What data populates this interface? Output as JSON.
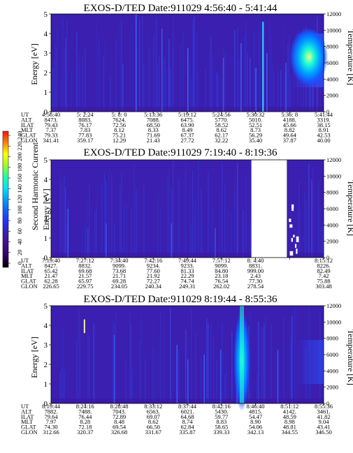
{
  "colors": {
    "background": "#ffffff",
    "plasma_bg": "#3a1fb0",
    "no_data": "#ffffff"
  },
  "colorbar": {
    "label": "Second Harmonic Current",
    "ticks": [
      "240",
      "220",
      "200",
      "180",
      "160",
      "140",
      "120",
      "100",
      "80",
      "60",
      "40",
      "20",
      "0"
    ],
    "range": [
      0,
      240
    ],
    "colors_top_to_bottom": [
      "#ff1010",
      "#ff8000",
      "#ffff00",
      "#a0ff20",
      "#20ffa0",
      "#00e0ff",
      "#00a0ff",
      "#1060ff",
      "#2030ff",
      "#3a1fb0",
      "#40108a",
      "#300060",
      "#000000"
    ]
  },
  "chart_data": [
    {
      "type": "heatmap",
      "title": "EXOS-D/TED   Date:911029  4:56:40 - 5:41:44",
      "ylabel": "Energy [eV]",
      "ylabel_right": "Temperature [K]",
      "ylim": [
        0,
        5
      ],
      "y_ticks": [
        "0",
        "1",
        "2",
        "3",
        "4",
        "5"
      ],
      "ylim_right": [
        0,
        12000
      ],
      "y_ticks_right": [
        "0",
        "2000",
        "4000",
        "6000",
        "8000",
        "10000",
        "12000"
      ],
      "grid": false,
      "row_labels": [
        "UT",
        "ALT",
        "ILAT",
        "MLT",
        "GLAT",
        "GLON"
      ],
      "columns": [
        [
          "4:56:40",
          "8473.",
          "79.43",
          "7.37",
          "79.33",
          "341.41"
        ],
        [
          "5: 2:24",
          "8083.",
          "76.17",
          "7.83",
          "77.83",
          "359.17"
        ],
        [
          "5: 8: 0",
          "7624.",
          "72.56",
          "8.12",
          "75.21",
          "12.29"
        ],
        [
          "5:13:36",
          "7088.",
          "68.50",
          "8.33",
          "71.69",
          "21.43"
        ],
        [
          "5:19:12",
          "6475.",
          "63.90",
          "8.49",
          "67.37",
          "27.72"
        ],
        [
          "5:24:56",
          "5770.",
          "58.52",
          "8.62",
          "62.17",
          "32.22"
        ],
        [
          "5:30:32",
          "5010.",
          "52.51",
          "8.73",
          "56.29",
          "35.40"
        ],
        [
          "5:36: 8",
          "4188.",
          "45.66",
          "8.82",
          "49.64",
          "37.87"
        ],
        [
          "5:41:44",
          "3319.",
          "38.15",
          "8.91",
          "42.53",
          "40.00"
        ]
      ],
      "no_data_fraction_ranges": [],
      "streaks": [
        [
          0.31,
          1.0,
          0.28
        ],
        [
          0.405,
          0.85,
          0.22
        ],
        [
          0.5,
          0.65,
          0.28
        ],
        [
          0.63,
          0.55,
          0.22
        ],
        [
          0.695,
          0.7,
          0.26
        ],
        [
          0.75,
          0.45,
          0.22
        ],
        [
          0.79,
          0.6,
          0.24
        ],
        [
          0.86,
          0.5,
          0.22
        ]
      ],
      "bright_streaks": [
        [
          0.775,
          0.92,
          0.35
        ]
      ],
      "blob": {
        "x": 0.92,
        "y": 2.8,
        "rx": 0.07,
        "ry": 1.5
      }
    },
    {
      "type": "heatmap",
      "title": "EXOS-D/TED   Date:911029  7:19:40 - 8:19:36",
      "ylabel": "Energy [eV]",
      "ylabel_right": "Temperature [K]",
      "ylim": [
        0,
        5
      ],
      "y_ticks": [
        "0",
        "1",
        "2",
        "3",
        "4",
        "5"
      ],
      "ylim_right": [
        0,
        12000
      ],
      "y_ticks_right": [
        "0",
        "2000",
        "4000",
        "6000",
        "8000",
        "10000",
        "12000"
      ],
      "grid": false,
      "row_labels": [
        "UT",
        "ALT",
        "ILAT",
        "MLT",
        "GLAT",
        "GLON"
      ],
      "columns": [
        [
          "7:19:40",
          "8427.",
          "65.42",
          "21.47",
          "62.28",
          "226.65"
        ],
        [
          "7:27:12",
          "8832.",
          "69.68",
          "21.57",
          "65.97",
          "229.75"
        ],
        [
          "7:34:40",
          "9099.",
          "73.68",
          "21.71",
          "69.28",
          "234.05"
        ],
        [
          "7:42:16",
          "9234.",
          "77.60",
          "21.92",
          "72.27",
          "240.34"
        ],
        [
          "7:49:44",
          "9233.",
          "81.33",
          "22.29",
          "74.74",
          "249.31"
        ],
        [
          "7:57:12",
          "9099.",
          "84.80",
          "23.18",
          "76.54",
          "262.02"
        ],
        [
          "8: 4:40",
          "8831.",
          "999.00",
          "2.43",
          "77.30",
          "278.54"
        ],
        [
          "",
          "",
          "",
          "",
          "",
          ""
        ],
        [
          "8:15:12",
          "8226.",
          "82.49",
          "7.42",
          "75.88",
          "303.48"
        ]
      ],
      "no_data_fraction_ranges": [
        [
          0.735,
          0.865
        ]
      ],
      "streaks": [
        [
          0.06,
          0.5,
          0.22
        ],
        [
          0.2,
          0.35,
          0.2
        ],
        [
          0.44,
          0.35,
          0.2
        ],
        [
          0.6,
          0.3,
          0.2
        ]
      ],
      "bright_streaks": [],
      "blob": null
    },
    {
      "type": "heatmap",
      "title": "EXOS-D/TED   Date:911029  8:19:44 - 8:55:36",
      "ylabel": "Energy [eV]",
      "ylabel_right": "Temperature [K]",
      "ylim": [
        0,
        5
      ],
      "y_ticks": [
        "0",
        "1",
        "2",
        "3",
        "4",
        "5"
      ],
      "ylim_right": [
        0,
        12000
      ],
      "y_ticks_right": [
        "0",
        "2000",
        "4000",
        "6000",
        "8000",
        "10000",
        "12000"
      ],
      "grid": false,
      "row_labels": [
        "UT",
        "ALT",
        "ILAT",
        "MLT",
        "GLAT",
        "GLON"
      ],
      "columns": [
        [
          "8:19:44",
          "7882.",
          "79.64",
          "7.97",
          "74.30",
          "312.66"
        ],
        [
          "8:24:16",
          "7488.",
          "76.44",
          "8.28",
          "72.18",
          "320.37"
        ],
        [
          "8:28:48",
          "7043.",
          "72.89",
          "8.48",
          "69.54",
          "326.68"
        ],
        [
          "8:33:12",
          "6563.",
          "69.07",
          "8.62",
          "66.50",
          "331.67"
        ],
        [
          "8:37:44",
          "6021.",
          "64.68",
          "8.74",
          "62.84",
          "335.87"
        ],
        [
          "8:42:16",
          "5430.",
          "59.77",
          "8.83",
          "58.65",
          "339.33"
        ],
        [
          "8:46:40",
          "4815.",
          "54.47",
          "8.90",
          "54.06",
          "342.13"
        ],
        [
          "8:51:12",
          "4142.",
          "48.59",
          "8.98",
          "48.81",
          "344.55"
        ],
        [
          "8:55:36",
          "3461.",
          "41.82",
          "9.04",
          "43.41",
          "346.50"
        ]
      ],
      "no_data_fraction_ranges": [],
      "streaks": [
        [
          0.23,
          0.7,
          0.22
        ],
        [
          0.46,
          0.6,
          0.25
        ],
        [
          0.5,
          0.45,
          0.22
        ],
        [
          0.56,
          0.5,
          0.25
        ],
        [
          0.62,
          0.55,
          0.22
        ],
        [
          0.68,
          0.5,
          0.25
        ],
        [
          0.83,
          0.55,
          0.22
        ]
      ],
      "bright_streaks": [
        [
          0.12,
          4.3,
          0.5
        ]
      ],
      "blob": {
        "x": 0.7,
        "y": 2.2,
        "rx": 0.03,
        "ry": 2.6
      }
    }
  ]
}
